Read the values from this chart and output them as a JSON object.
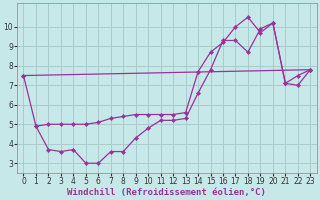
{
  "xlabel": "Windchill (Refroidissement éolien,°C)",
  "bg_color": "#c6e8e8",
  "line_color": "#993399",
  "grid_color": "#a8cccc",
  "xlim": [
    -0.5,
    23.5
  ],
  "ylim": [
    2.5,
    11.2
  ],
  "yticks": [
    3,
    4,
    5,
    6,
    7,
    8,
    9,
    10
  ],
  "xticks": [
    0,
    1,
    2,
    3,
    4,
    5,
    6,
    7,
    8,
    9,
    10,
    11,
    12,
    13,
    14,
    15,
    16,
    17,
    18,
    19,
    20,
    21,
    22,
    23
  ],
  "line1_x": [
    0,
    1,
    2,
    3,
    4,
    5,
    6,
    7,
    8,
    9,
    10,
    11,
    12,
    13,
    14,
    15,
    16,
    17,
    18,
    19,
    20,
    21,
    22,
    23
  ],
  "line1_y": [
    7.5,
    4.9,
    5.0,
    5.0,
    5.0,
    5.0,
    5.1,
    5.3,
    5.4,
    5.5,
    5.5,
    5.5,
    5.5,
    5.6,
    7.7,
    8.7,
    9.2,
    10.0,
    10.5,
    9.7,
    10.2,
    7.1,
    7.5,
    7.8
  ],
  "line2_x": [
    1,
    2,
    3,
    4,
    5,
    6,
    7,
    8,
    9,
    10,
    11,
    12,
    13,
    14,
    15,
    16,
    17,
    18,
    19,
    20,
    21,
    22,
    23
  ],
  "line2_y": [
    4.9,
    3.7,
    3.6,
    3.7,
    3.0,
    3.0,
    3.6,
    3.6,
    4.3,
    4.8,
    5.2,
    5.2,
    5.3,
    6.6,
    7.8,
    9.3,
    9.3,
    8.7,
    9.9,
    10.2,
    7.1,
    7.0,
    7.8
  ],
  "line3_x": [
    0,
    23
  ],
  "line3_y": [
    7.5,
    7.8
  ],
  "tick_color": "#333333",
  "tick_fontsize": 5.5,
  "xlabel_fontsize": 6.5,
  "xlabel_color": "#993399"
}
